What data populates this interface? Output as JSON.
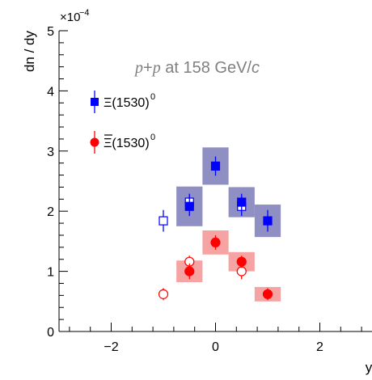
{
  "chart_data": {
    "type": "scatter",
    "title": "",
    "annotation": "p+p at 158 GeV/c",
    "annotation_parts": {
      "p1": "p",
      "plus": "+",
      "p2": "p",
      "rest": " at 158 GeV/",
      "c": "c"
    },
    "xlabel": "y",
    "ylabel": "dn / dy",
    "y_exponent": "×10",
    "y_exponent_power": "−4",
    "xlim": [
      -3.0,
      3.0
    ],
    "ylim": [
      0,
      5
    ],
    "x_ticks": [
      -2,
      0,
      2
    ],
    "x_tick_labels": [
      "−2",
      "0",
      "2"
    ],
    "y_ticks": [
      0,
      1,
      2,
      3,
      4,
      5
    ],
    "y_tick_labels": [
      "0",
      "1",
      "2",
      "3",
      "4",
      "5"
    ],
    "grid": false,
    "legend_position": "top-left",
    "legend": [
      {
        "label": "Ξ(1530)",
        "superscript": "0",
        "bar": false
      },
      {
        "label": "Ξ(1530)",
        "superscript": "0",
        "bar": true
      }
    ],
    "series": [
      {
        "name": "Ξ(1530)0",
        "color": "#0000ff",
        "box_color": "#8f8fc4",
        "marker": "square",
        "filled": [
          {
            "x": -0.5,
            "y": 2.08,
            "err": 0.16,
            "sys_half_width": 0.25,
            "sys": 0.33
          },
          {
            "x": 0.0,
            "y": 2.75,
            "err": 0.16,
            "sys_half_width": 0.25,
            "sys": 0.31
          },
          {
            "x": 0.5,
            "y": 2.15,
            "err": 0.14,
            "sys_half_width": 0.25,
            "sys": 0.25
          },
          {
            "x": 1.0,
            "y": 1.84,
            "err": 0.18,
            "sys_half_width": 0.25,
            "sys": 0.27
          }
        ],
        "reflected": [
          {
            "x": -1.0,
            "y": 1.84,
            "err": 0.18
          },
          {
            "x": -0.5,
            "y": 2.15,
            "err": 0.14
          },
          {
            "x": 0.5,
            "y": 2.08,
            "err": 0.16
          }
        ]
      },
      {
        "name": "anti-Ξ(1530)0",
        "color": "#ff0000",
        "box_color": "#f5a3a3",
        "marker": "circle",
        "filled": [
          {
            "x": -0.5,
            "y": 1.0,
            "err": 0.13,
            "sys_half_width": 0.25,
            "sys": 0.18
          },
          {
            "x": 0.0,
            "y": 1.48,
            "err": 0.12,
            "sys_half_width": 0.25,
            "sys": 0.2
          },
          {
            "x": 0.5,
            "y": 1.16,
            "err": 0.1,
            "sys_half_width": 0.25,
            "sys": 0.16
          },
          {
            "x": 1.0,
            "y": 0.62,
            "err": 0.1,
            "sys_half_width": 0.25,
            "sys": 0.12
          }
        ],
        "reflected": [
          {
            "x": -1.0,
            "y": 0.62,
            "err": 0.1
          },
          {
            "x": -0.5,
            "y": 1.16,
            "err": 0.1
          },
          {
            "x": 0.5,
            "y": 1.0,
            "err": 0.13
          }
        ]
      }
    ]
  }
}
